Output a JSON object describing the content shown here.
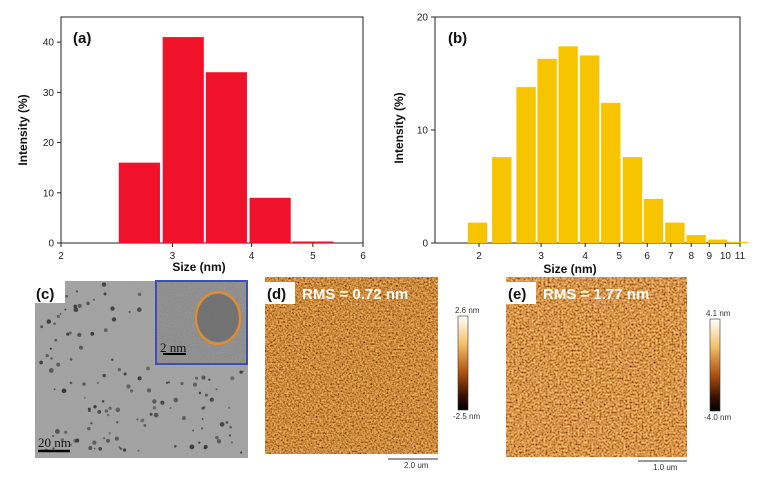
{
  "chart_data": [
    {
      "type": "bar",
      "panel_label": "(a)",
      "xlabel": "Size (nm)",
      "ylabel": "Intensity (%)",
      "x_scale": "log",
      "xlim": [
        2,
        6
      ],
      "ylim": [
        0,
        45
      ],
      "xticks": [
        2,
        3,
        4,
        5,
        6
      ],
      "yticks": [
        0,
        10,
        20,
        30,
        40
      ],
      "x": [
        2.66,
        3.12,
        3.65,
        4.28,
        5.0
      ],
      "values": [
        16,
        41,
        34,
        9,
        0.3
      ],
      "color": "#f0112b"
    },
    {
      "type": "bar",
      "panel_label": "(b)",
      "xlabel": "Size (nm)",
      "ylabel": "Intensity (%)",
      "x_scale": "log",
      "xlim": [
        1.5,
        11
      ],
      "ylim": [
        0,
        20
      ],
      "xticks": [
        2,
        3,
        4,
        5,
        6,
        7,
        8,
        9,
        10,
        11
      ],
      "yticks": [
        0,
        10,
        20
      ],
      "x": [
        1.98,
        2.32,
        2.72,
        3.12,
        3.58,
        4.12,
        4.73,
        5.45,
        6.25,
        7.19,
        8.26,
        9.5,
        10.9
      ],
      "values": [
        1.8,
        7.6,
        13.8,
        16.3,
        17.4,
        16.6,
        12.4,
        7.6,
        3.9,
        1.8,
        0.7,
        0.3,
        0.1
      ],
      "color": "#f7c500"
    }
  ],
  "images": {
    "tem": {
      "panel_label": "(c)",
      "scale_bar": "20 nm",
      "inset_scale_bar": "2 nm"
    },
    "afm_d": {
      "panel_label": "(d)",
      "rms": "RMS = 0.72 nm",
      "cb_max": "2.6 nm",
      "cb_min": "-2.5 nm",
      "scale_bar": "2.0 um"
    },
    "afm_e": {
      "panel_label": "(e)",
      "rms": "RMS = 1.77 nm",
      "cb_max": "4.1 nm",
      "cb_min": "-4.0 nm",
      "scale_bar": "1.0 um"
    }
  },
  "colors": {
    "tem_inset_border": "#3d4fb5",
    "tem_inset_circle": "#f08a1c"
  }
}
